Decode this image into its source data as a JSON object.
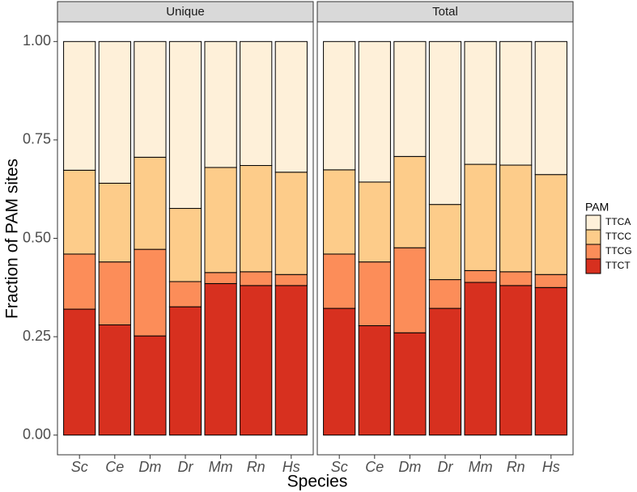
{
  "chart_data": {
    "type": "bar",
    "stacked": true,
    "y_label": "Fraction of PAM sites",
    "x_label": "Species",
    "categories": [
      "Sc",
      "Ce",
      "Dm",
      "Dr",
      "Mm",
      "Rn",
      "Hs"
    ],
    "ylim": [
      -0.05,
      1.05
    ],
    "yticks": [
      {
        "value": 0,
        "label": "0.00"
      },
      {
        "value": 0.25,
        "label": "0.25"
      },
      {
        "value": 0.5,
        "label": "0.50"
      },
      {
        "value": 0.75,
        "label": "0.75"
      },
      {
        "value": 1,
        "label": "1.00"
      }
    ],
    "legend_title": "PAM",
    "series": [
      {
        "name": "TTCA",
        "color": "#fef0d9"
      },
      {
        "name": "TTCC",
        "color": "#fdcc8a"
      },
      {
        "name": "TTCG",
        "color": "#fc8d59"
      },
      {
        "name": "TTCT",
        "color": "#d7301f"
      }
    ],
    "facets": [
      {
        "title": "Unique",
        "values": [
          [
            0.327,
            0.36,
            0.294,
            0.424,
            0.32,
            0.315,
            0.332
          ],
          [
            0.213,
            0.2,
            0.234,
            0.186,
            0.267,
            0.27,
            0.26
          ],
          [
            0.14,
            0.16,
            0.22,
            0.064,
            0.028,
            0.035,
            0.028
          ],
          [
            0.32,
            0.28,
            0.252,
            0.326,
            0.385,
            0.38,
            0.38
          ]
        ]
      },
      {
        "title": "Total",
        "values": [
          [
            0.326,
            0.357,
            0.292,
            0.414,
            0.312,
            0.314,
            0.338
          ],
          [
            0.214,
            0.203,
            0.232,
            0.191,
            0.27,
            0.271,
            0.254
          ],
          [
            0.138,
            0.162,
            0.216,
            0.073,
            0.03,
            0.035,
            0.033
          ],
          [
            0.322,
            0.278,
            0.26,
            0.322,
            0.388,
            0.38,
            0.375
          ]
        ]
      }
    ]
  }
}
